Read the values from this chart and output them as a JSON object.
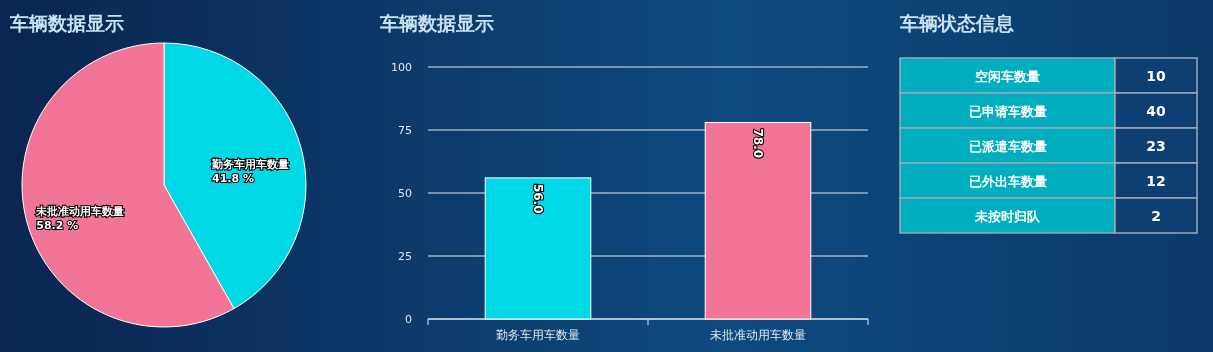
{
  "chart_data": [
    {
      "type": "pie",
      "title": "车辆数据显示",
      "categories": [
        "勤务车用车数量",
        "未批准动用车数量"
      ],
      "values": [
        41.8,
        58.2
      ],
      "colors": [
        "#00d8e6",
        "#f27598"
      ],
      "value_labels": [
        "41.8 %",
        "58.2 %"
      ]
    },
    {
      "type": "bar",
      "title": "车辆数据显示",
      "categories": [
        "勤务车用车数量",
        "未批准动用车数量"
      ],
      "values": [
        56.0,
        78.0
      ],
      "colors": [
        "#00d8e6",
        "#f27598"
      ],
      "value_labels": [
        "56.0",
        "78.0"
      ],
      "ylim": [
        0,
        100
      ],
      "yticks": [
        0,
        25,
        50,
        75,
        100
      ],
      "grid": "y"
    },
    {
      "type": "other",
      "title": "车辆状态信息",
      "categories": [
        "空闲车数量",
        "已申请车数量",
        "已派遣车数量",
        "已外出车数量",
        "未按时归队"
      ],
      "values": [
        10,
        40,
        23,
        12,
        2
      ],
      "data_labels": true
    }
  ]
}
